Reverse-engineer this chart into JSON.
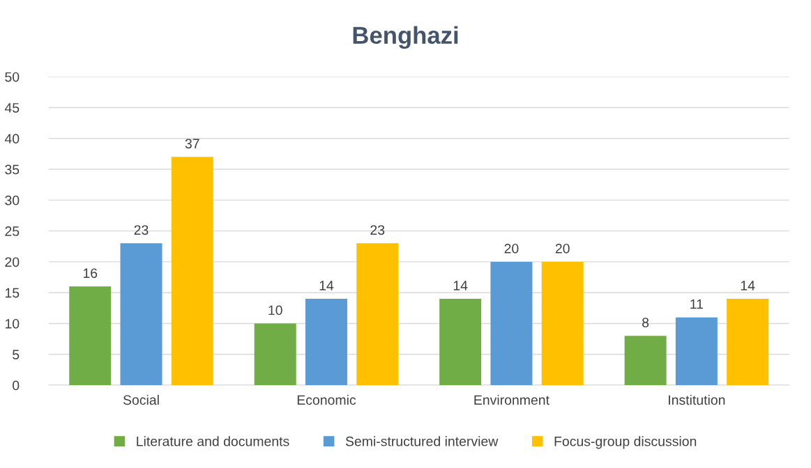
{
  "chart_data": {
    "type": "bar",
    "title": "Benghazi",
    "categories": [
      "Social",
      "Economic",
      "Environment",
      "Institution"
    ],
    "series": [
      {
        "name": "Literature and documents",
        "color": "#70ad47",
        "values": [
          16,
          10,
          14,
          8
        ]
      },
      {
        "name": "Semi-structured interview",
        "color": "#5b9bd5",
        "values": [
          23,
          14,
          20,
          11
        ]
      },
      {
        "name": "Focus-group discussion",
        "color": "#ffc000",
        "values": [
          37,
          23,
          20,
          14
        ]
      }
    ],
    "ylim": [
      0,
      50
    ],
    "yticks": [
      0,
      5,
      10,
      15,
      20,
      25,
      30,
      35,
      40,
      45,
      50
    ],
    "grid": "y",
    "legend": "bottom",
    "data_labels": true
  }
}
